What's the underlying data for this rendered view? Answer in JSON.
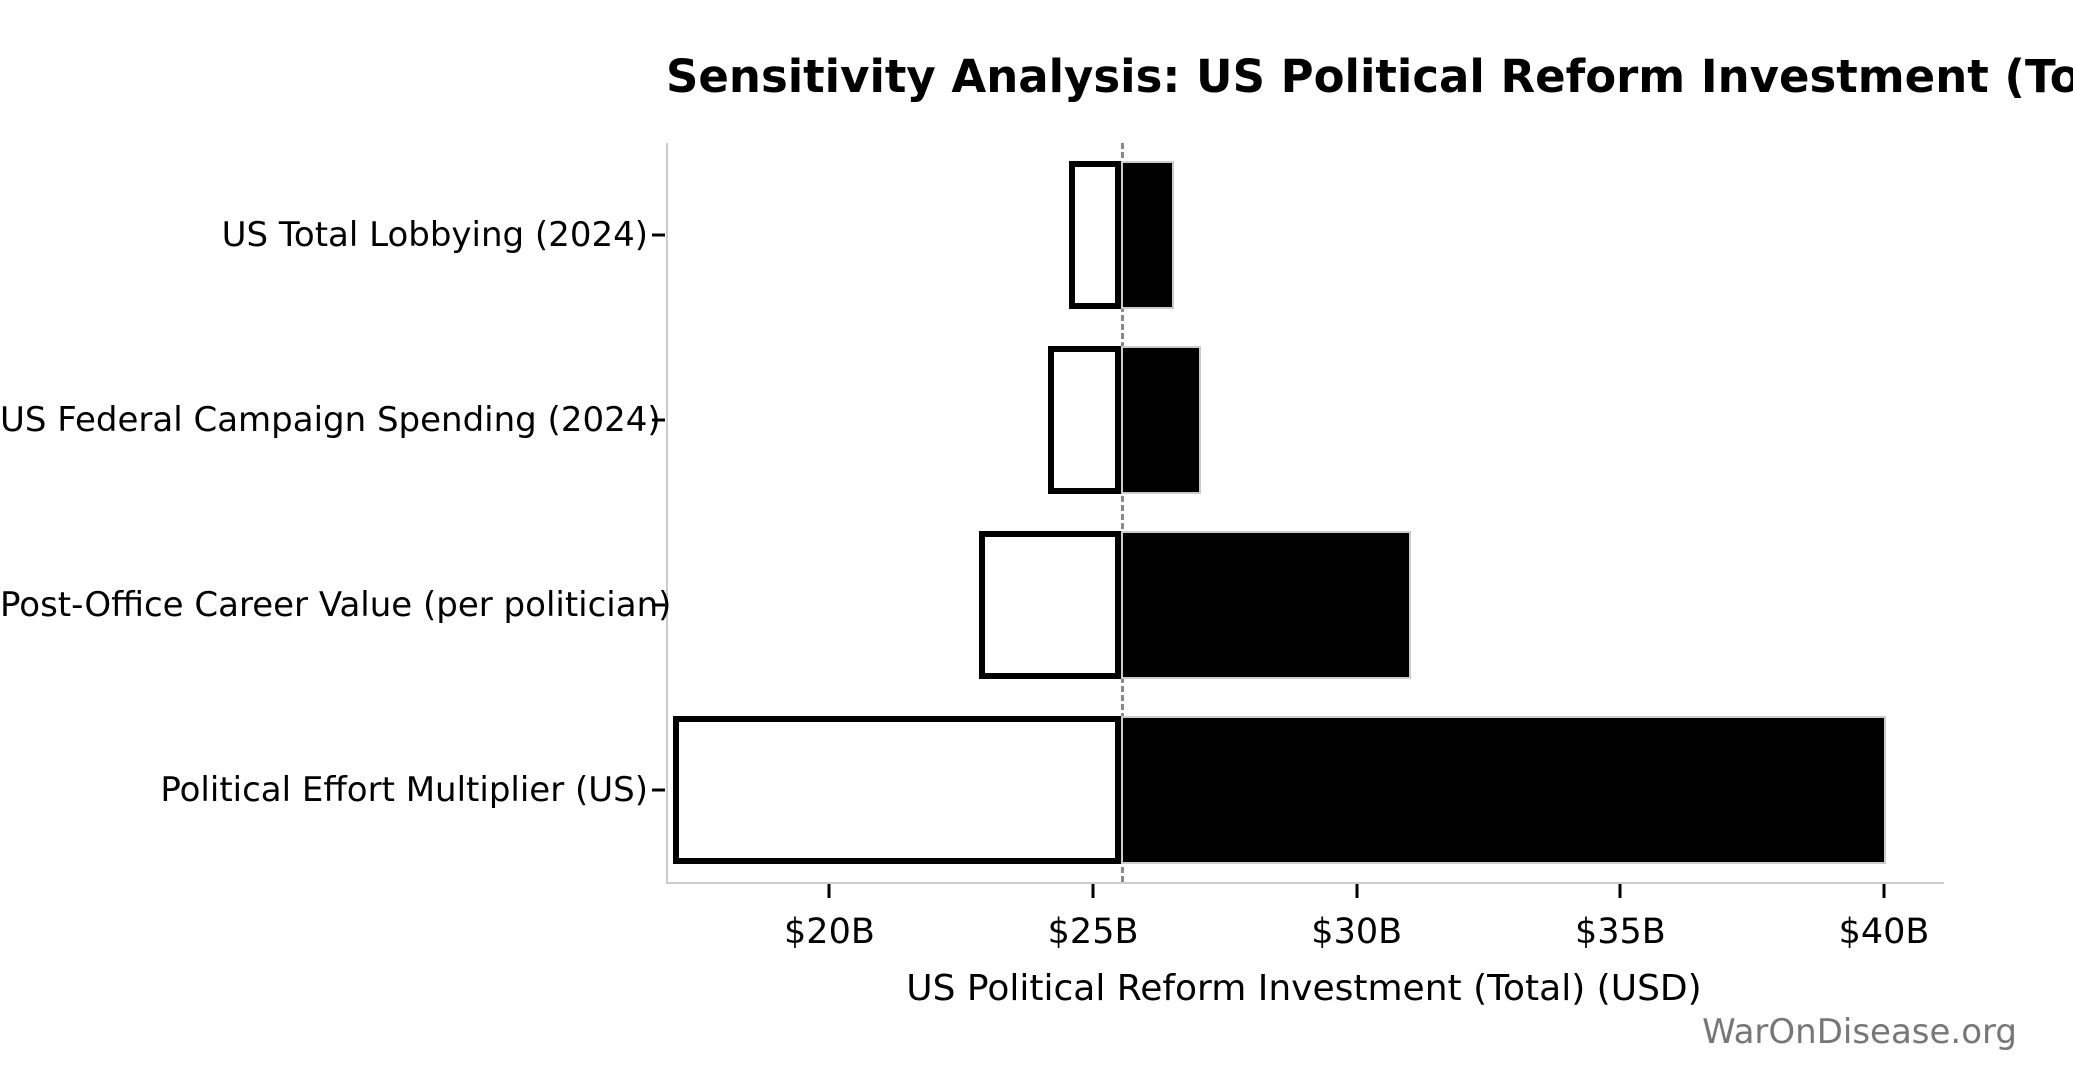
{
  "chart_data": {
    "type": "bar",
    "subtype": "tornado-sensitivity",
    "title": "Sensitivity Analysis: US Political Reform Investment (Total)",
    "xlabel": "US Political Reform Investment (Total) (USD)",
    "ylabel": "",
    "watermark": "WarOnDisease.org",
    "xlim": [
      16.9,
      41.1
    ],
    "baseline_value": 25.5,
    "x_ticks": [
      {
        "value": 20,
        "label": "$20B"
      },
      {
        "value": 25,
        "label": "$25B"
      },
      {
        "value": 30,
        "label": "$30B"
      },
      {
        "value": 35,
        "label": "$35B"
      },
      {
        "value": 40,
        "label": "$40B"
      }
    ],
    "categories": [
      "US Total Lobbying (2024)",
      "US Federal Campaign Spending (2024)",
      "Post-Office Career Value (per politician)",
      "Political Effort Multiplier (US)"
    ],
    "rows": [
      {
        "label": "US Total Lobbying (2024)",
        "low": 24.5,
        "high": 26.5
      },
      {
        "label": "US Federal Campaign Spending (2024)",
        "low": 24.1,
        "high": 27.0
      },
      {
        "label": "Post-Office Career Value (per politician)",
        "low": 22.8,
        "high": 31.0
      },
      {
        "label": "Political Effort Multiplier (US)",
        "low": 17.0,
        "high": 40.0
      }
    ],
    "units": "billion USD",
    "legend": null,
    "grid": false,
    "colors": {
      "low_bar_fill": "#ffffff",
      "low_bar_edge": "#000000",
      "high_bar_fill": "#000000",
      "high_bar_edge": "#cccccc",
      "baseline_line": "#888888",
      "axis_spine": "#cccccc",
      "watermark_text": "#777777"
    }
  }
}
